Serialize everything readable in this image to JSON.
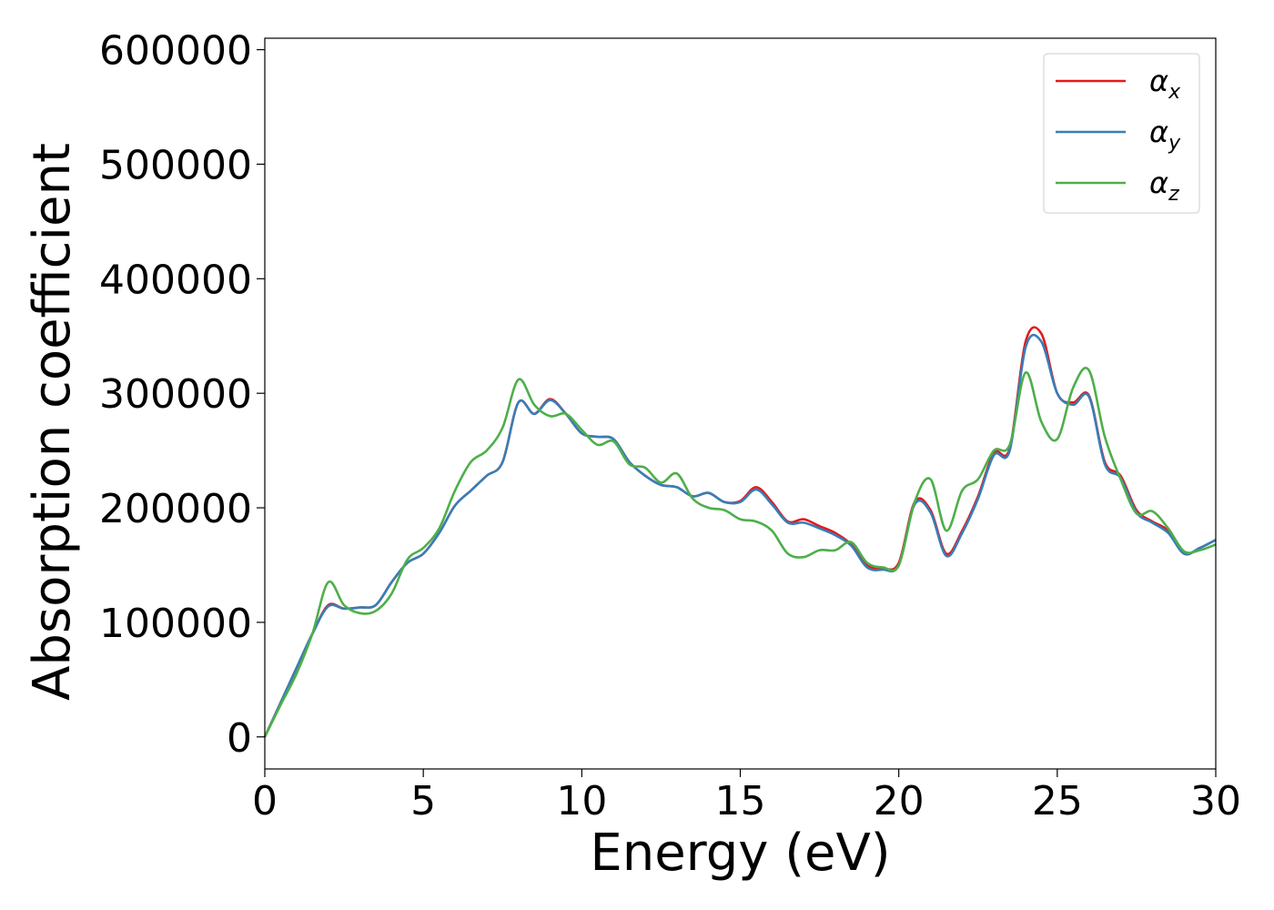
{
  "chart_data": {
    "type": "line",
    "xlabel": "Energy (eV)",
    "ylabel": "Absorption coefficient",
    "xlim": [
      0,
      30
    ],
    "ylim": [
      -28000,
      610000
    ],
    "xticks": [
      "0",
      "5",
      "10",
      "15",
      "20",
      "25",
      "30"
    ],
    "yticks": [
      "0",
      "100000",
      "200000",
      "300000",
      "400000",
      "500000",
      "600000"
    ],
    "grid": false,
    "legend_position": "top-right",
    "x": [
      0,
      0.5,
      1,
      1.5,
      2,
      2.5,
      3,
      3.5,
      4,
      4.5,
      5,
      5.5,
      6,
      6.5,
      7,
      7.5,
      8,
      8.5,
      9,
      9.5,
      10,
      10.5,
      11,
      11.5,
      12,
      12.5,
      13,
      13.5,
      14,
      14.5,
      15,
      15.5,
      16,
      16.5,
      17,
      17.5,
      18,
      18.5,
      19,
      19.5,
      20,
      20.5,
      21,
      21.5,
      22,
      22.5,
      23,
      23.5,
      24,
      24.5,
      25,
      25.5,
      26,
      26.5,
      27,
      27.5,
      28,
      28.5,
      29,
      29.5,
      30
    ],
    "series": [
      {
        "name": "α",
        "subscript": "x",
        "color": "#e41a1c",
        "values": [
          0,
          30000,
          60000,
          90000,
          115000,
          112000,
          113000,
          115000,
          135000,
          152000,
          160000,
          178000,
          202000,
          215000,
          228000,
          240000,
          292000,
          282000,
          295000,
          282000,
          265000,
          262000,
          260000,
          240000,
          228000,
          220000,
          218000,
          210000,
          213000,
          205000,
          206000,
          218000,
          205000,
          188000,
          190000,
          184000,
          178000,
          168000,
          150000,
          147000,
          152000,
          205000,
          198000,
          160000,
          180000,
          210000,
          248000,
          252000,
          345000,
          352000,
          300000,
          292000,
          298000,
          240000,
          228000,
          198000,
          188000,
          180000,
          160000,
          165000,
          172000
        ]
      },
      {
        "name": "α",
        "subscript": "y",
        "color": "#377eb8",
        "values": [
          0,
          30000,
          60000,
          90000,
          114000,
          112000,
          113000,
          115000,
          135000,
          152000,
          160000,
          178000,
          202000,
          215000,
          228000,
          240000,
          292000,
          282000,
          294000,
          282000,
          265000,
          262000,
          260000,
          240000,
          228000,
          220000,
          218000,
          210000,
          213000,
          205000,
          205000,
          216000,
          203000,
          187000,
          187000,
          182000,
          176000,
          167000,
          148000,
          146000,
          150000,
          203000,
          196000,
          158000,
          178000,
          208000,
          246000,
          250000,
          340000,
          345000,
          300000,
          290000,
          297000,
          238000,
          226000,
          196000,
          187000,
          178000,
          160000,
          165000,
          172000
        ]
      },
      {
        "name": "α",
        "subscript": "z",
        "color": "#4daf4a",
        "values": [
          0,
          28000,
          55000,
          90000,
          135000,
          115000,
          108000,
          110000,
          125000,
          155000,
          165000,
          182000,
          215000,
          240000,
          250000,
          270000,
          312000,
          290000,
          280000,
          282000,
          268000,
          255000,
          258000,
          238000,
          235000,
          222000,
          230000,
          208000,
          200000,
          198000,
          190000,
          188000,
          180000,
          160000,
          157000,
          163000,
          163000,
          170000,
          152000,
          148000,
          150000,
          205000,
          225000,
          180000,
          215000,
          225000,
          250000,
          255000,
          318000,
          275000,
          260000,
          305000,
          320000,
          262000,
          225000,
          195000,
          197000,
          182000,
          162000,
          163000,
          168000
        ]
      }
    ]
  }
}
